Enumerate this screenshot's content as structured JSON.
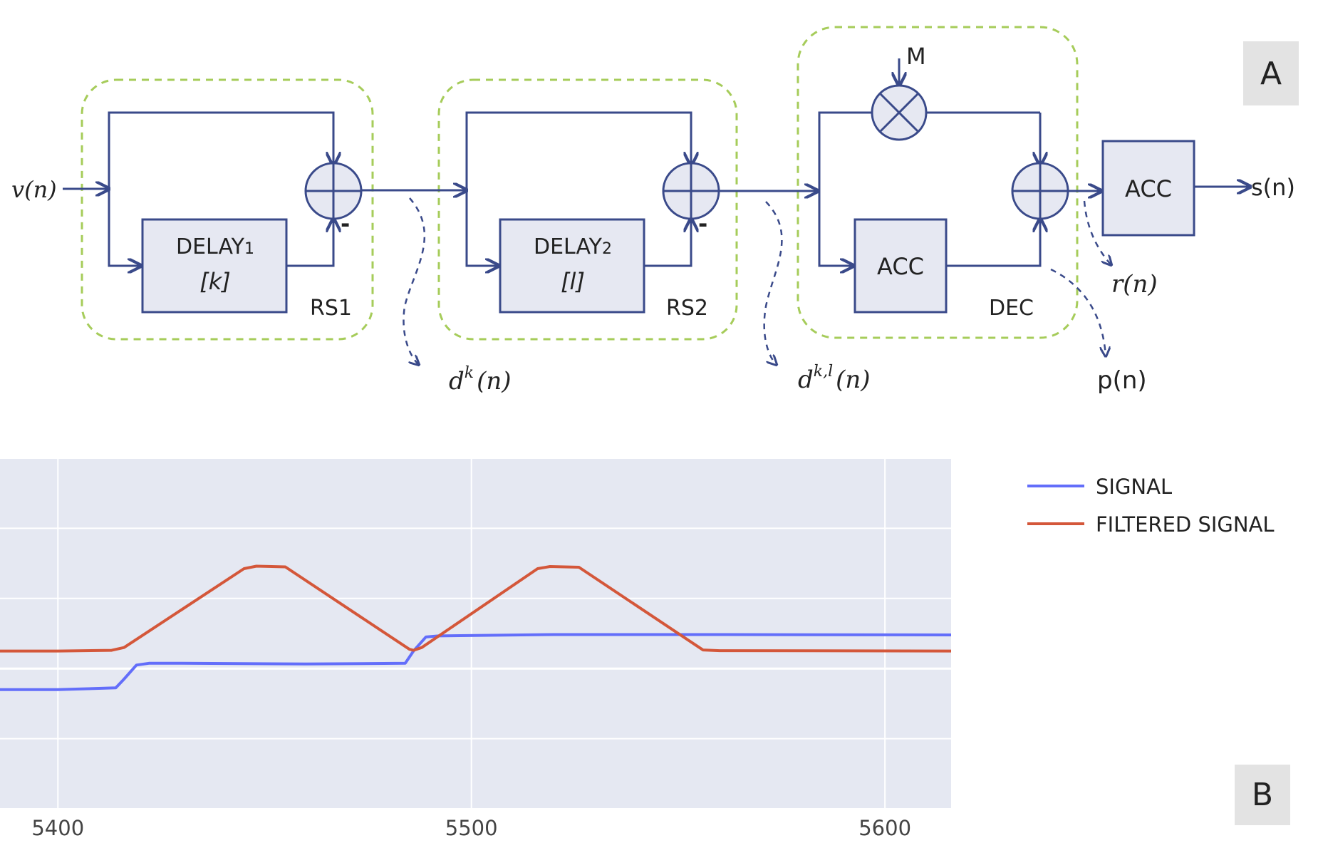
{
  "diagram": {
    "panel_a_label": "A",
    "panel_b_label": "B",
    "input_label": "v(n)",
    "output_label": "s(n)",
    "stage1": {
      "label": "RS1",
      "block_line1": "DELAY",
      "block_sub": "1",
      "block_line2": "[k]",
      "minus": "-"
    },
    "stage2": {
      "label": "RS2",
      "block_line1": "DELAY",
      "block_sub": "2",
      "block_line2": "[l]",
      "minus": "-"
    },
    "stage3": {
      "label": "DEC",
      "block": "ACC",
      "mult_input": "M"
    },
    "final_block": "ACC",
    "tap1": {
      "base": "d",
      "sup": "k",
      "arg": "(n)"
    },
    "tap2": {
      "base": "d",
      "sup": "k,l",
      "arg": "(n)"
    },
    "tap_r": "r(n)",
    "tap_p": "p(n)",
    "colors": {
      "line": "#3a4a8a",
      "box_fill": "#e6e8f2",
      "dashed_group": "#a6cc5a",
      "signal": "#636efa",
      "filtered": "#d4573a",
      "plot_bg": "#e5e8f2"
    }
  },
  "chart_data": {
    "type": "line",
    "xlim": [
      5386,
      5616
    ],
    "ylim": [
      0,
      100
    ],
    "x_ticks": [
      "5400",
      "5500",
      "5600"
    ],
    "grid": true,
    "legend_position": "right",
    "series": [
      {
        "name": "SIGNAL",
        "color": "#636efa",
        "x": [
          5386,
          5400,
          5414,
          5416,
          5419,
          5422,
          5430,
          5460,
          5484,
          5486,
          5489,
          5492,
          5520,
          5560,
          5616
        ],
        "y": [
          34,
          34,
          34.5,
          37,
          41,
          41.5,
          41.5,
          41.3,
          41.5,
          45,
          49,
          49.3,
          49.7,
          49.7,
          49.6
        ]
      },
      {
        "name": "FILTERED SIGNAL",
        "color": "#d4573a",
        "x": [
          5386,
          5400,
          5413,
          5416,
          5445,
          5448,
          5455,
          5485,
          5486,
          5488,
          5516,
          5519,
          5526,
          5556,
          5560,
          5616
        ],
        "y": [
          45,
          45,
          45.2,
          46,
          68.5,
          69.2,
          69,
          45.5,
          45.2,
          46,
          68.5,
          69.1,
          68.9,
          45.3,
          45.1,
          45
        ]
      }
    ]
  }
}
